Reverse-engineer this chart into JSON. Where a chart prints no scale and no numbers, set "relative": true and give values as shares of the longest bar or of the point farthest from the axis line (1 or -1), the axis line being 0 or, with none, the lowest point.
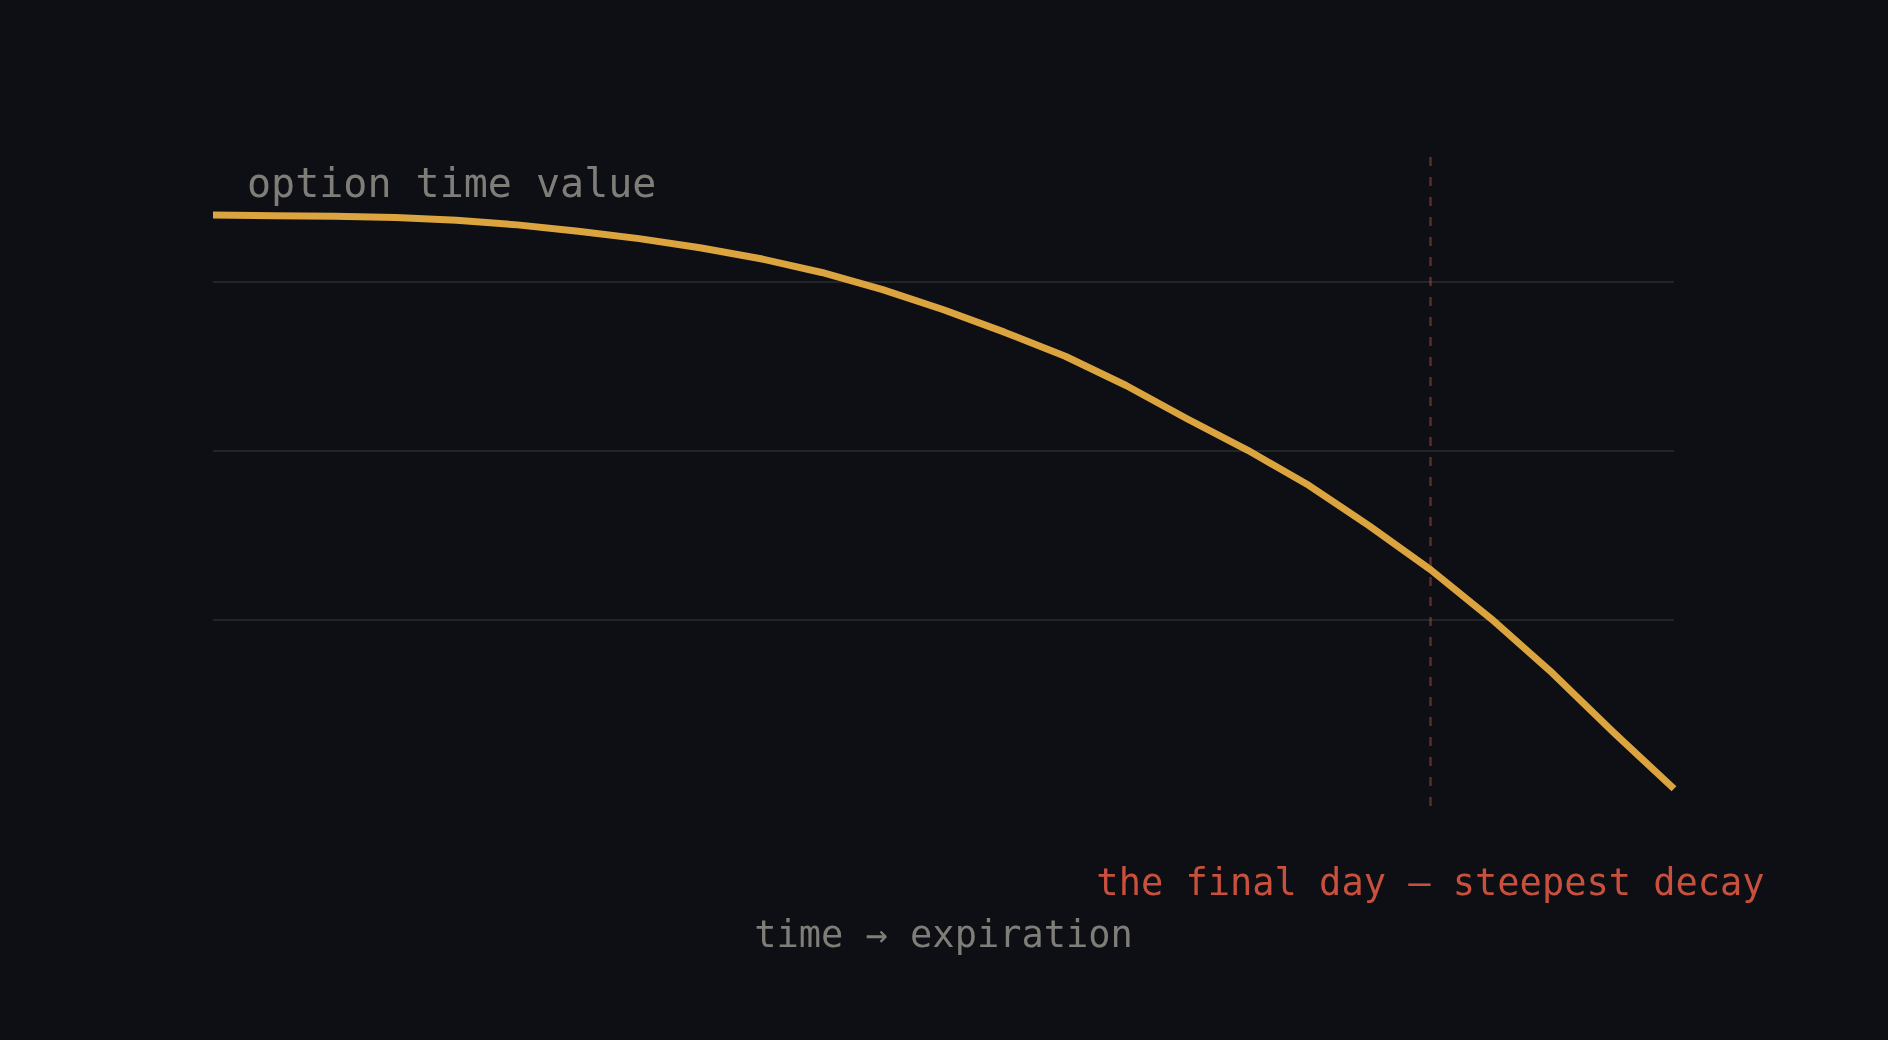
{
  "chart_data": {
    "type": "line",
    "relative": true,
    "ylabel": "option time value",
    "xlabel": "time → expiration",
    "categories": [
      null,
      null,
      null,
      null,
      null,
      null,
      null,
      null,
      null,
      null,
      null,
      null,
      null,
      null,
      null,
      null,
      null,
      null,
      null,
      null,
      null,
      null,
      null,
      null,
      null
    ],
    "series": [
      {
        "color": "#dca43f",
        "values": [
          1,
          0.999,
          0.998,
          0.996,
          0.991,
          0.983,
          0.972,
          0.959,
          0.943,
          0.924,
          0.9,
          0.87,
          0.835,
          0.796,
          0.754,
          0.703,
          0.645,
          0.59,
          0.529,
          0.458,
          0.382,
          0.296,
          0.202,
          0.099,
          0
        ]
      }
    ],
    "annotations": [
      "the final day — steepest decay"
    ],
    "grid": "y",
    "marker": "none",
    "line_style": "solid",
    "tick_labels": false
  }
}
